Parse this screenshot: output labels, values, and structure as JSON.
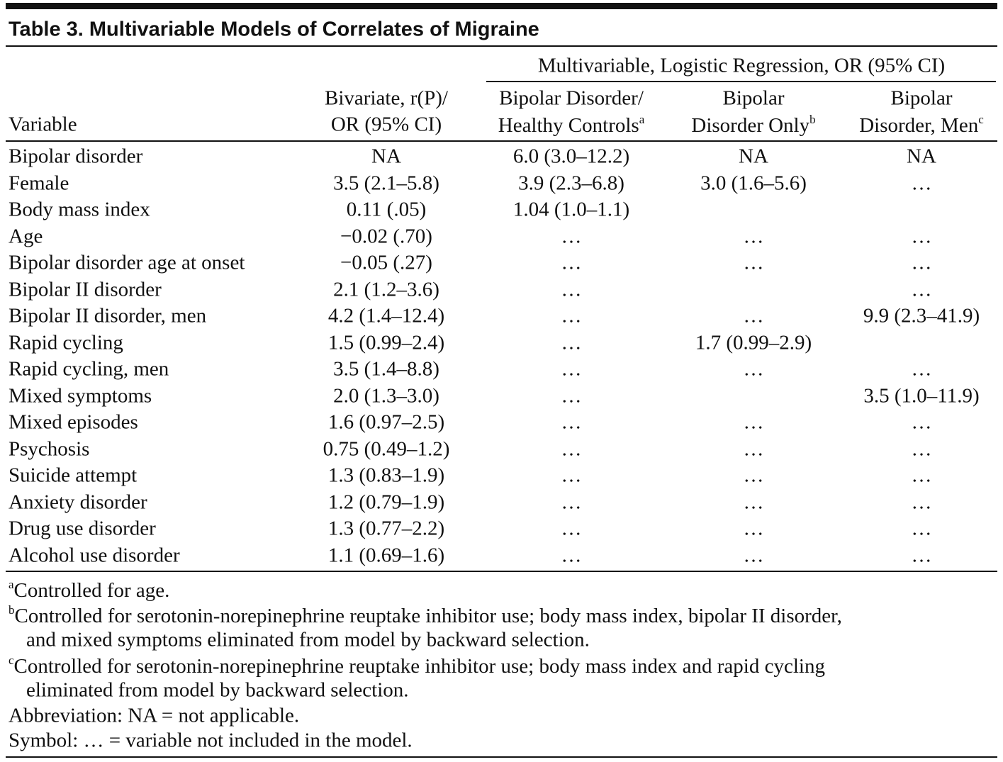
{
  "title": "Table 3. Multivariable Models of Correlates of Migraine",
  "table": {
    "spanner": "Multivariable, Logistic Regression, OR (95% CI)",
    "columns": [
      {
        "lines": [
          "Variable"
        ]
      },
      {
        "lines": [
          "Bivariate, r(P)/",
          "OR (95% CI)"
        ]
      },
      {
        "lines": [
          "Bipolar Disorder/",
          "Healthy Controls"
        ],
        "note": "a"
      },
      {
        "lines": [
          "Bipolar",
          "Disorder Only"
        ],
        "note": "b"
      },
      {
        "lines": [
          "Bipolar",
          "Disorder, Men"
        ],
        "note": "c"
      }
    ],
    "rows": [
      [
        "Bipolar disorder",
        "NA",
        "6.0 (3.0–12.2)",
        "NA",
        "NA"
      ],
      [
        "Female",
        "3.5 (2.1–5.8)",
        "3.9 (2.3–6.8)",
        "3.0 (1.6–5.6)",
        "…"
      ],
      [
        "Body mass index",
        "0.11 (.05)",
        "1.04 (1.0–1.1)",
        null,
        null
      ],
      [
        "Age",
        "−0.02 (.70)",
        "…",
        "…",
        "…"
      ],
      [
        "Bipolar disorder age at onset",
        "−0.05 (.27)",
        "…",
        "…",
        "…"
      ],
      [
        "Bipolar II disorder",
        "2.1 (1.2–3.6)",
        "…",
        null,
        "…"
      ],
      [
        "Bipolar II disorder, men",
        "4.2 (1.4–12.4)",
        "…",
        "…",
        "9.9 (2.3–41.9)"
      ],
      [
        "Rapid cycling",
        "1.5 (0.99–2.4)",
        "…",
        "1.7 (0.99–2.9)",
        null
      ],
      [
        "Rapid cycling, men",
        "3.5 (1.4–8.8)",
        "…",
        "…",
        "…"
      ],
      [
        "Mixed symptoms",
        "2.0 (1.3–3.0)",
        "…",
        null,
        "3.5 (1.0–11.9)"
      ],
      [
        "Mixed episodes",
        "1.6 (0.97–2.5)",
        "…",
        "…",
        "…"
      ],
      [
        "Psychosis",
        "0.75 (0.49–1.2)",
        "…",
        "…",
        "…"
      ],
      [
        "Suicide attempt",
        "1.3 (0.83–1.9)",
        "…",
        "…",
        "…"
      ],
      [
        "Anxiety disorder",
        "1.2 (0.79–1.9)",
        "…",
        "…",
        "…"
      ],
      [
        "Drug use disorder",
        "1.3 (0.77–2.2)",
        "…",
        "…",
        "…"
      ],
      [
        "Alcohol use disorder",
        "1.1 (0.69–1.6)",
        "…",
        "…",
        "…"
      ]
    ]
  },
  "footnotes": [
    {
      "mark": "a",
      "lines": [
        "Controlled for age."
      ]
    },
    {
      "mark": "b",
      "lines": [
        "Controlled for serotonin-norepinephrine reuptake inhibitor use; body mass index, bipolar II disorder,",
        "and mixed symptoms eliminated from model by backward selection."
      ]
    },
    {
      "mark": "c",
      "lines": [
        "Controlled for serotonin-norepinephrine reuptake inhibitor use; body mass index and rapid cycling",
        "eliminated from model by backward selection."
      ]
    },
    {
      "lines": [
        "Abbreviation: NA = not applicable."
      ]
    },
    {
      "lines": [
        "Symbol: … = variable not included in the model."
      ]
    }
  ]
}
